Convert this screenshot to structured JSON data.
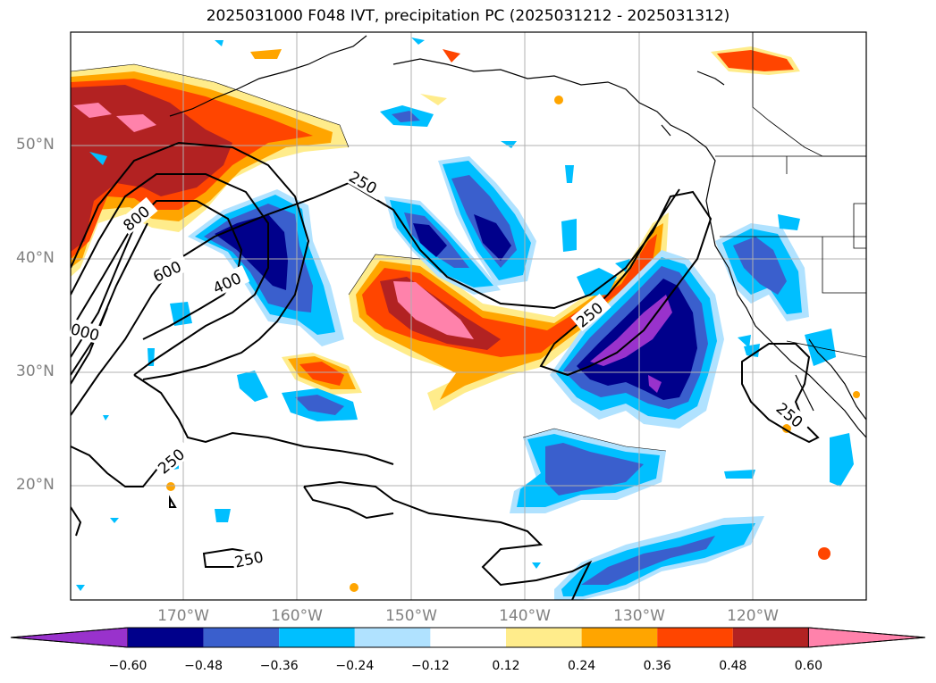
{
  "title": "2025031000 F048 IVT, precipitation PC (2025031212 - 2025031312)",
  "lat_labels": [
    "50°N",
    "40°N",
    "30°N",
    "20°N"
  ],
  "lon_labels": [
    "170°W",
    "160°W",
    "150°W",
    "140°W",
    "130°W",
    "120°W"
  ],
  "contour_labels": [
    "250",
    "250",
    "250",
    "250",
    "250",
    "400",
    "600",
    "800",
    "000"
  ],
  "colorbar": {
    "colors": [
      "#9932cc",
      "#00008b",
      "#3a5fcd",
      "#00bfff",
      "#b0e2ff",
      "#ffffff",
      "#ffec8b",
      "#ffa500",
      "#ff4500",
      "#b22222",
      "#ff82ab"
    ],
    "ticks": [
      "−0.60",
      "−0.48",
      "−0.36",
      "−0.24",
      "−0.12",
      "0.12",
      "0.24",
      "0.36",
      "0.48",
      "0.60"
    ]
  }
}
